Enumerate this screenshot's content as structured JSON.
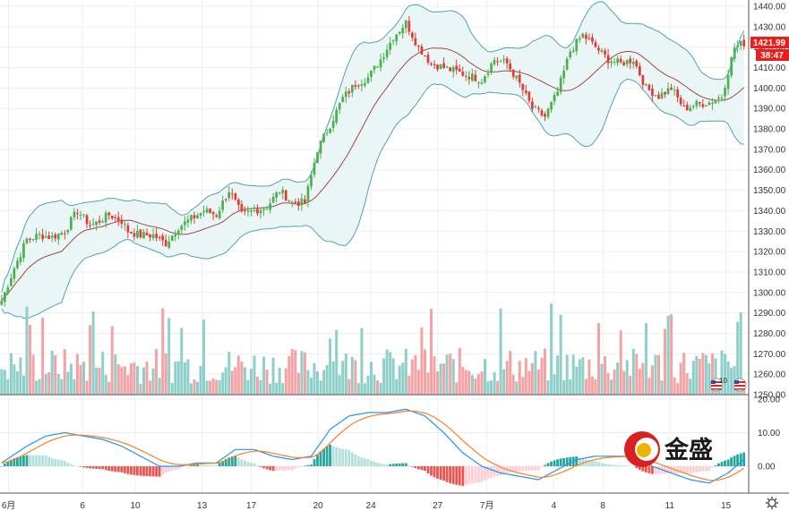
{
  "chart_data": {
    "type": "candlestick",
    "main": {
      "ylim": [
        1250,
        1440
      ],
      "y_ticks": [
        "1440.00",
        "1430.00",
        "1420.00",
        "1410.00",
        "1400.00",
        "1390.00",
        "1380.00",
        "1370.00",
        "1360.00",
        "1350.00",
        "1340.00",
        "1330.00",
        "1320.00",
        "1310.00",
        "1300.00",
        "1290.00",
        "1280.00",
        "1270.00",
        "1260.00",
        "1250.00"
      ],
      "y_tick_values": [
        1440,
        1430,
        1420,
        1410,
        1400,
        1390,
        1380,
        1370,
        1360,
        1350,
        1340,
        1330,
        1320,
        1310,
        1300,
        1290,
        1280,
        1270,
        1260,
        1250
      ],
      "last_price": "1421.99",
      "last_price_value": 1421.99,
      "countdown": "38:47",
      "grid": true,
      "colors": {
        "up": "#26a69a",
        "down": "#ef5350",
        "candle_up": "#4caf50",
        "candle_down": "#e53935",
        "band": "#4fa3b5",
        "band_fill": "#eaf6f5",
        "basis": "#a04848",
        "tag": "#ef1c1c"
      },
      "close_anchors": [
        [
          0,
          1296
        ],
        [
          4,
          1312
        ],
        [
          8,
          1326
        ],
        [
          12,
          1328
        ],
        [
          16,
          1327
        ],
        [
          20,
          1330
        ],
        [
          24,
          1340
        ],
        [
          28,
          1333
        ],
        [
          30,
          1334
        ],
        [
          34,
          1338
        ],
        [
          38,
          1335
        ],
        [
          40,
          1330
        ],
        [
          44,
          1328
        ],
        [
          48,
          1328
        ],
        [
          52,
          1324
        ],
        [
          56,
          1332
        ],
        [
          60,
          1336
        ],
        [
          64,
          1340
        ],
        [
          68,
          1338
        ],
        [
          72,
          1350
        ],
        [
          76,
          1338
        ],
        [
          80,
          1340
        ],
        [
          84,
          1342
        ],
        [
          88,
          1350
        ],
        [
          92,
          1344
        ],
        [
          96,
          1344
        ],
        [
          100,
          1370
        ],
        [
          104,
          1382
        ],
        [
          108,
          1395
        ],
        [
          112,
          1402
        ],
        [
          116,
          1405
        ],
        [
          120,
          1414
        ],
        [
          124,
          1425
        ],
        [
          128,
          1432
        ],
        [
          132,
          1420
        ],
        [
          136,
          1412
        ],
        [
          140,
          1410
        ],
        [
          144,
          1408
        ],
        [
          148,
          1406
        ],
        [
          152,
          1404
        ],
        [
          156,
          1414
        ],
        [
          160,
          1412
        ],
        [
          164,
          1402
        ],
        [
          168,
          1390
        ],
        [
          172,
          1386
        ],
        [
          176,
          1398
        ],
        [
          180,
          1418
        ],
        [
          184,
          1426
        ],
        [
          188,
          1420
        ],
        [
          192,
          1414
        ],
        [
          196,
          1412
        ],
        [
          200,
          1414
        ],
        [
          204,
          1400
        ],
        [
          208,
          1396
        ],
        [
          212,
          1400
        ],
        [
          216,
          1390
        ],
        [
          220,
          1392
        ],
        [
          224,
          1393
        ],
        [
          228,
          1396
        ],
        [
          232,
          1420
        ],
        [
          235,
          1422
        ]
      ],
      "volume_ylim": [
        0,
        120
      ]
    },
    "macd": {
      "ylim": [
        -8,
        20
      ],
      "y_ticks": [
        "20.00",
        "10.00",
        "0.00"
      ],
      "y_tick_values": [
        20,
        10,
        0
      ],
      "colors": {
        "macd_line": "#2196f3",
        "signal_line": "#ff7f20",
        "hist_pos_strong": "#26a69a",
        "hist_pos_weak": "#b2dfdb",
        "hist_neg_strong": "#ef5350",
        "hist_neg_weak": "#ffcdd2"
      },
      "macd_anchors": [
        [
          0,
          1
        ],
        [
          8,
          6
        ],
        [
          14,
          9
        ],
        [
          20,
          10
        ],
        [
          26,
          9
        ],
        [
          32,
          8
        ],
        [
          38,
          6
        ],
        [
          44,
          3
        ],
        [
          50,
          0
        ],
        [
          56,
          0
        ],
        [
          62,
          1
        ],
        [
          68,
          1
        ],
        [
          74,
          5
        ],
        [
          80,
          5
        ],
        [
          86,
          3
        ],
        [
          92,
          2
        ],
        [
          98,
          3
        ],
        [
          104,
          11
        ],
        [
          110,
          15
        ],
        [
          116,
          16
        ],
        [
          122,
          16
        ],
        [
          128,
          17
        ],
        [
          134,
          15
        ],
        [
          140,
          10
        ],
        [
          146,
          4
        ],
        [
          152,
          0
        ],
        [
          158,
          -2
        ],
        [
          164,
          -3
        ],
        [
          170,
          -4
        ],
        [
          176,
          -1
        ],
        [
          182,
          2
        ],
        [
          188,
          3
        ],
        [
          194,
          3
        ],
        [
          200,
          3
        ],
        [
          206,
          0
        ],
        [
          212,
          -2
        ],
        [
          218,
          -4
        ],
        [
          224,
          -5
        ],
        [
          230,
          -2
        ],
        [
          235,
          2
        ]
      ]
    },
    "x_axis": {
      "labels": [
        "6月",
        "6",
        "10",
        "13",
        "17",
        "20",
        "24",
        "27",
        "7月",
        "4",
        "8",
        "11",
        "15"
      ],
      "label_positions": [
        2,
        23,
        38,
        57,
        71,
        90,
        105,
        124,
        138,
        157,
        171,
        190,
        206
      ]
    }
  },
  "branding": {
    "name": "金盛"
  },
  "icons": {
    "flag_icons": [
      "us-flag-icon",
      "us-flag-icon"
    ],
    "settings_icon": "gear-icon"
  },
  "flag_badge_text": "10"
}
